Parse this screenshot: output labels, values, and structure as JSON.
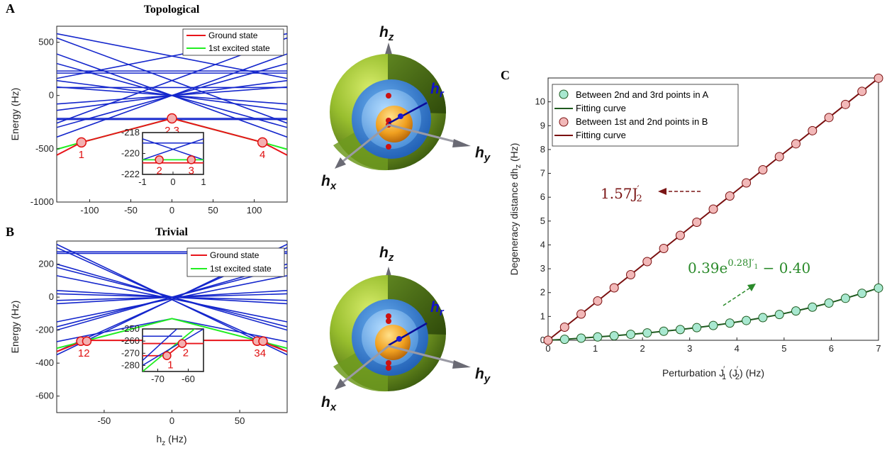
{
  "panels": {
    "A": "A",
    "B": "B",
    "C": "C"
  },
  "colors": {
    "ground": "#e8141a",
    "excited": "#22ee22",
    "lines": "#1426cc",
    "darkred": "#7a1515",
    "darkgreen": "#2a6b2a",
    "fitA": "#1f5a1f",
    "fitB": "#7a1010",
    "ptA": "#a8e8d0",
    "ptB": "#f2b8b8"
  },
  "chart_data": [
    {
      "id": "A",
      "type": "line",
      "title": "Topological",
      "xlabel": "",
      "ylabel": "Energy (Hz)",
      "xlim": [
        -140,
        140
      ],
      "ylim": [
        -1000,
        650
      ],
      "xticks": [
        -100,
        -50,
        0,
        50,
        100
      ],
      "yticks": [
        500,
        0,
        -500,
        -1000
      ],
      "legend": {
        "position": "top-right",
        "entries": [
          "Ground state",
          "1st excited state"
        ]
      },
      "series": [
        {
          "name": "Ground state",
          "color": "ground",
          "x": [
            -140,
            -110,
            0,
            110,
            140
          ],
          "y": [
            -560,
            -440,
            -215,
            -440,
            -560
          ]
        },
        {
          "name": "1st excited state",
          "color": "excited",
          "x": [
            -140,
            -110,
            0,
            110,
            140
          ],
          "y": [
            -505,
            -440,
            -215,
            -440,
            -505
          ]
        }
      ],
      "flat_levels": [
        230,
        210,
        75,
        -215,
        -225
      ],
      "crossing_lines": [
        [
          -140,
          540,
          140,
          -260
        ],
        [
          -140,
          390,
          140,
          -390
        ],
        [
          -140,
          300,
          140,
          -300
        ],
        [
          -140,
          140,
          140,
          -140
        ],
        [
          -140,
          80,
          140,
          -80
        ],
        [
          -140,
          -260,
          140,
          540
        ],
        [
          -140,
          -390,
          140,
          390
        ],
        [
          -140,
          -300,
          140,
          300
        ],
        [
          -140,
          -140,
          140,
          140
        ],
        [
          -140,
          -80,
          140,
          80
        ],
        [
          -140,
          580,
          140,
          160
        ],
        [
          -140,
          160,
          140,
          580
        ]
      ],
      "points": [
        {
          "label": "1",
          "x": -110,
          "y": -440
        },
        {
          "label": "2 3",
          "x": 0,
          "y": -215
        },
        {
          "label": "4",
          "x": 110,
          "y": -440
        }
      ],
      "inset": {
        "xlim": [
          -1,
          1
        ],
        "ylim": [
          -222,
          -218
        ],
        "xticks": [
          -1,
          0,
          1
        ],
        "yticks": [
          -218,
          -220,
          -222
        ],
        "ground_y": -220.9,
        "excited_y": -220.6,
        "flat_blue": -219,
        "points": [
          {
            "label": "2",
            "x": -0.45,
            "y": -220.6
          },
          {
            "label": "3",
            "x": 0.6,
            "y": -220.6
          }
        ]
      }
    },
    {
      "id": "B",
      "type": "line",
      "title": "Trivial",
      "xlabel": "h_z (Hz)",
      "ylabel": "Energy (Hz)",
      "xlim": [
        -85,
        85
      ],
      "ylim": [
        -700,
        340
      ],
      "xticks": [
        -50,
        0,
        50
      ],
      "yticks": [
        200,
        0,
        -200,
        -400,
        -600
      ],
      "legend": {
        "position": "top-right",
        "entries": [
          "Ground state",
          "1st excited state"
        ]
      },
      "series": [
        {
          "name": "Ground state",
          "color": "ground",
          "x": [
            -85,
            -67,
            -63,
            63,
            67,
            85
          ],
          "y": [
            -330,
            -272,
            -262,
            -262,
            -272,
            -330
          ]
        },
        {
          "name": "1st excited state",
          "color": "excited",
          "x": [
            -85,
            -67,
            0,
            67,
            85
          ],
          "y": [
            -310,
            -272,
            -130,
            -272,
            -310
          ]
        }
      ],
      "flat_levels": [
        265,
        275
      ],
      "crossing_lines": [
        [
          -85,
          320,
          85,
          -350
        ],
        [
          -85,
          300,
          85,
          -330
        ],
        [
          -85,
          200,
          85,
          -200
        ],
        [
          -85,
          180,
          85,
          -180
        ],
        [
          -85,
          -350,
          85,
          320
        ],
        [
          -85,
          -330,
          85,
          300
        ],
        [
          -85,
          -200,
          85,
          200
        ],
        [
          -85,
          -180,
          85,
          180
        ],
        [
          -85,
          40,
          85,
          -40
        ],
        [
          -85,
          -40,
          85,
          40
        ],
        [
          -85,
          20,
          85,
          -20
        ],
        [
          -85,
          -20,
          85,
          20
        ],
        [
          -85,
          -150,
          85,
          130
        ],
        [
          -85,
          130,
          85,
          -150
        ],
        [
          -85,
          -270,
          0,
          -130
        ],
        [
          0,
          -130,
          85,
          -270
        ]
      ],
      "points": [
        {
          "label": "12",
          "x": -65,
          "y": -267
        },
        {
          "label": "34",
          "x": 65,
          "y": -267
        }
      ],
      "inset": {
        "xlim": [
          -75,
          -55
        ],
        "ylim": [
          -285,
          -250
        ],
        "xticks": [
          -70,
          -60
        ],
        "yticks": [
          -250,
          -260,
          -270,
          -280
        ],
        "points": [
          {
            "label": "1",
            "x": -67,
            "y": -272
          },
          {
            "label": "2",
            "x": -62,
            "y": -262
          }
        ]
      }
    },
    {
      "id": "C",
      "type": "scatter",
      "xlabel": "Perturbation J′₁ (J′₂) (Hz)",
      "ylabel": "Degeneracy distance dh_z (Hz)",
      "xlim": [
        0,
        7
      ],
      "ylim": [
        0,
        11
      ],
      "xticks": [
        0,
        1,
        2,
        3,
        4,
        5,
        6,
        7
      ],
      "yticks": [
        0,
        1,
        2,
        3,
        4,
        5,
        6,
        7,
        8,
        9,
        10
      ],
      "legend": {
        "position": "top-left",
        "entries": [
          "Between 2nd and 3rd points in A",
          "Fitting curve",
          "Between 1st and 2nd points in B",
          "Fitting curve"
        ]
      },
      "series": [
        {
          "name": "Between 2nd and 3rd points in A",
          "x": [
            0,
            0.35,
            0.7,
            1.05,
            1.4,
            1.75,
            2.1,
            2.45,
            2.8,
            3.15,
            3.5,
            3.85,
            4.2,
            4.55,
            4.9,
            5.25,
            5.6,
            5.95,
            6.3,
            6.65,
            7.0
          ],
          "y": [
            0.0,
            0.04,
            0.09,
            0.14,
            0.19,
            0.25,
            0.31,
            0.38,
            0.45,
            0.53,
            0.62,
            0.72,
            0.83,
            0.95,
            1.08,
            1.23,
            1.39,
            1.56,
            1.76,
            1.97,
            2.19
          ]
        },
        {
          "name": "Between 1st and 2nd points in B",
          "x": [
            0,
            0.35,
            0.7,
            1.05,
            1.4,
            1.75,
            2.1,
            2.45,
            2.8,
            3.15,
            3.5,
            3.85,
            4.2,
            4.55,
            4.9,
            5.25,
            5.6,
            5.95,
            6.3,
            6.65,
            7.0
          ],
          "y": [
            0.0,
            0.55,
            1.1,
            1.65,
            2.2,
            2.75,
            3.3,
            3.85,
            4.4,
            4.95,
            5.5,
            6.05,
            6.6,
            7.15,
            7.7,
            8.24,
            8.79,
            9.34,
            9.89,
            10.44,
            10.99
          ]
        }
      ],
      "annotations": [
        "1.57J′₂",
        "0.39e^{0.28J′₁} − 0.40"
      ]
    }
  ],
  "spheres": {
    "hz": "h",
    "hz_sub": "z",
    "hx": "h",
    "hx_sub": "x",
    "hy": "h",
    "hy_sub": "y",
    "hr": "h",
    "hr_sub": "r"
  },
  "c_texts": {
    "ann_red_main": "1.57J",
    "ann_red_sup": "′",
    "ann_red_sub": "2",
    "ann_green_a": "0.39e",
    "ann_green_sup": "0.28J′",
    "ann_green_supsub": "1",
    "ann_green_b": " − 0.40",
    "xlabel_a": "Perturbation J",
    "xlabel_sup1": "′",
    "xlabel_sub1": "1",
    "xlabel_b": " (J",
    "xlabel_sup2": "′",
    "xlabel_sub2": "2",
    "xlabel_c": ") (Hz)",
    "ylabel_a": "Degeneracy distance dh",
    "ylabel_sub": "z",
    "ylabel_c": " (Hz)"
  },
  "b_texts": {
    "xlabel_a": "h",
    "xlabel_sub": "z",
    "xlabel_b": " (Hz)"
  }
}
